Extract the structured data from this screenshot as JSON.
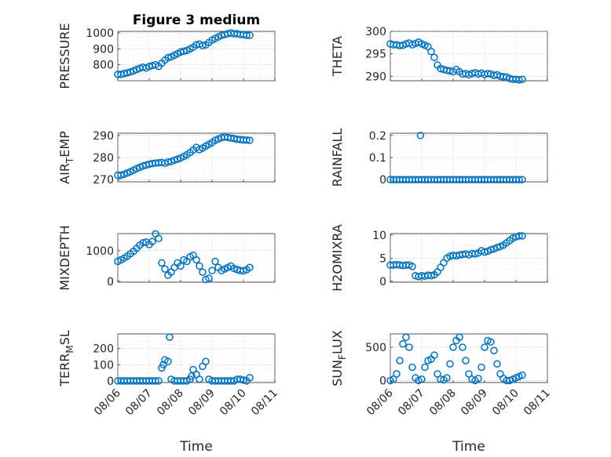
{
  "colors": {
    "series": "#0072BD"
  },
  "chart_data": [
    {
      "type": "scatter",
      "title": "Figure 3 medium",
      "ylabel": "PRESSURE",
      "ylim": [
        700,
        1010
      ],
      "yticks": [
        800,
        900,
        1000
      ],
      "x": [
        0.0,
        0.1,
        0.2,
        0.3,
        0.4,
        0.5,
        0.6,
        0.7,
        0.8,
        0.9,
        1.0,
        1.1,
        1.2,
        1.3,
        1.4,
        1.5,
        1.6,
        1.7,
        1.8,
        1.9,
        2.0,
        2.1,
        2.2,
        2.3,
        2.4,
        2.5,
        2.6,
        2.7,
        2.8,
        2.9,
        3.0,
        3.1,
        3.2,
        3.3,
        3.4,
        3.5,
        3.6,
        3.7,
        3.8,
        3.9,
        4.0,
        4.1,
        4.2
      ],
      "y": [
        740,
        740,
        745,
        750,
        755,
        762,
        770,
        778,
        785,
        780,
        790,
        795,
        800,
        790,
        810,
        830,
        845,
        850,
        860,
        870,
        880,
        885,
        890,
        900,
        910,
        925,
        930,
        920,
        925,
        940,
        955,
        965,
        975,
        985,
        990,
        995,
        1000,
        995,
        995,
        990,
        990,
        985,
        985
      ]
    },
    {
      "type": "scatter",
      "title": "",
      "ylabel": "THETA",
      "ylim": [
        289,
        300
      ],
      "yticks": [
        290,
        295,
        300
      ],
      "x": [
        0.0,
        0.1,
        0.2,
        0.3,
        0.4,
        0.5,
        0.6,
        0.7,
        0.8,
        0.9,
        1.0,
        1.1,
        1.2,
        1.3,
        1.4,
        1.5,
        1.6,
        1.7,
        1.8,
        1.9,
        2.0,
        2.1,
        2.2,
        2.3,
        2.4,
        2.5,
        2.6,
        2.7,
        2.8,
        2.9,
        3.0,
        3.1,
        3.2,
        3.3,
        3.4,
        3.5,
        3.6,
        3.7,
        3.8,
        3.9,
        4.0,
        4.1,
        4.2
      ],
      "y": [
        297.2,
        297.0,
        297.0,
        296.8,
        296.9,
        297.2,
        297.4,
        297.0,
        297.3,
        297.6,
        297.2,
        296.9,
        296.6,
        295.5,
        294.2,
        292.5,
        291.7,
        291.5,
        291.3,
        291.2,
        291.0,
        291.5,
        291.0,
        290.5,
        290.6,
        290.3,
        290.6,
        290.8,
        290.5,
        290.7,
        290.4,
        290.6,
        290.5,
        290.2,
        290.3,
        290.0,
        289.9,
        289.8,
        289.5,
        289.3,
        289.3,
        289.2,
        289.3
      ]
    },
    {
      "type": "scatter",
      "title": "",
      "ylabel": "AIR_TEMP",
      "ylabel_main": "AIR",
      "ylabel_sub": "T",
      "ylabel_rest": "EMP",
      "ylim": [
        269,
        291
      ],
      "yticks": [
        270,
        280,
        290
      ],
      "x": [
        0.0,
        0.1,
        0.2,
        0.3,
        0.4,
        0.5,
        0.6,
        0.7,
        0.8,
        0.9,
        1.0,
        1.1,
        1.2,
        1.3,
        1.4,
        1.5,
        1.6,
        1.7,
        1.8,
        1.9,
        2.0,
        2.1,
        2.2,
        2.3,
        2.4,
        2.5,
        2.6,
        2.7,
        2.8,
        2.9,
        3.0,
        3.1,
        3.2,
        3.3,
        3.4,
        3.5,
        3.6,
        3.7,
        3.8,
        3.9,
        4.0,
        4.1,
        4.2
      ],
      "y": [
        272,
        272,
        272.4,
        273,
        273.6,
        274.3,
        275,
        275.6,
        276.2,
        276.6,
        277,
        277.3,
        277.5,
        277.6,
        277.8,
        277.4,
        278,
        278.2,
        278.8,
        279.2,
        279.8,
        280.5,
        281.3,
        282.2,
        283.4,
        284.6,
        283.6,
        284.3,
        285.2,
        286,
        286.8,
        287.8,
        288.4,
        289,
        289.3,
        289.1,
        288.8,
        288.6,
        288.3,
        288.1,
        288,
        287.9,
        287.8
      ]
    },
    {
      "type": "scatter",
      "title": "",
      "ylabel": "RAINFALL",
      "ylim": [
        -0.01,
        0.21
      ],
      "yticks": [
        0,
        0.1,
        0.2
      ],
      "ytick_labels": [
        "0",
        "0.1",
        "0.2"
      ],
      "x": [
        0.0,
        0.1,
        0.2,
        0.3,
        0.4,
        0.5,
        0.6,
        0.7,
        0.8,
        0.9,
        1.0,
        1.1,
        1.2,
        1.3,
        1.4,
        1.5,
        1.6,
        1.7,
        1.8,
        1.9,
        2.0,
        2.1,
        2.2,
        2.3,
        2.4,
        2.5,
        2.6,
        2.7,
        2.8,
        2.9,
        3.0,
        3.1,
        3.2,
        3.3,
        3.4,
        3.5,
        3.6,
        3.7,
        3.8,
        3.9,
        4.0,
        4.1,
        4.2,
        0.96
      ],
      "y": [
        0,
        0,
        0,
        0,
        0,
        0,
        0,
        0,
        0,
        0,
        0,
        0,
        0,
        0,
        0,
        0,
        0,
        0,
        0,
        0,
        0,
        0,
        0,
        0,
        0,
        0,
        0,
        0,
        0,
        0,
        0,
        0,
        0,
        0,
        0,
        0,
        0,
        0,
        0,
        0,
        0,
        0,
        0,
        0.2
      ]
    },
    {
      "type": "scatter",
      "title": "",
      "ylabel": "MIXDEPTH",
      "ylim": [
        -30,
        1560
      ],
      "yticks": [
        0,
        1000
      ],
      "x": [
        0.0,
        0.1,
        0.2,
        0.3,
        0.4,
        0.5,
        0.6,
        0.7,
        0.8,
        0.9,
        1.0,
        1.1,
        1.2,
        1.3,
        1.4,
        1.5,
        1.6,
        1.7,
        1.8,
        1.9,
        2.0,
        2.1,
        2.2,
        2.3,
        2.4,
        2.5,
        2.6,
        2.7,
        2.8,
        2.9,
        3.0,
        3.1,
        3.2,
        3.3,
        3.4,
        3.5,
        3.6,
        3.7,
        3.8,
        3.9,
        4.0,
        4.1,
        4.2
      ],
      "y": [
        650,
        700,
        760,
        820,
        900,
        980,
        1080,
        1180,
        1260,
        1280,
        1200,
        1300,
        1550,
        1400,
        600,
        400,
        200,
        300,
        450,
        600,
        500,
        700,
        650,
        800,
        850,
        700,
        500,
        300,
        60,
        100,
        350,
        650,
        450,
        350,
        400,
        450,
        500,
        420,
        380,
        350,
        340,
        380,
        450
      ]
    },
    {
      "type": "scatter",
      "title": "",
      "ylabel": "H2OMIXRA",
      "ylim": [
        -0.2,
        10.3
      ],
      "yticks": [
        0,
        5,
        10
      ],
      "x": [
        0.0,
        0.1,
        0.2,
        0.3,
        0.4,
        0.5,
        0.6,
        0.7,
        0.8,
        0.9,
        1.0,
        1.1,
        1.2,
        1.3,
        1.4,
        1.5,
        1.6,
        1.7,
        1.8,
        1.9,
        2.0,
        2.1,
        2.2,
        2.3,
        2.4,
        2.5,
        2.6,
        2.7,
        2.8,
        2.9,
        3.0,
        3.1,
        3.2,
        3.3,
        3.4,
        3.5,
        3.6,
        3.7,
        3.8,
        3.9,
        4.0,
        4.1,
        4.2
      ],
      "y": [
        3.5,
        3.5,
        3.6,
        3.5,
        3.4,
        3.5,
        3.5,
        3.2,
        1.2,
        1.0,
        1.2,
        1.1,
        1.3,
        1.2,
        1.4,
        2.0,
        3.0,
        4.0,
        5.0,
        5.4,
        5.6,
        5.5,
        5.7,
        5.8,
        5.9,
        5.7,
        6.0,
        5.9,
        6.1,
        6.6,
        6.3,
        6.5,
        6.8,
        7.0,
        7.3,
        7.5,
        7.8,
        8.3,
        8.8,
        9.3,
        9.6,
        9.8,
        9.8
      ]
    },
    {
      "type": "scatter",
      "title": "",
      "ylabel": "TERR_MSL",
      "ylabel_main": "TERR",
      "ylabel_sub": "M",
      "ylabel_rest": "SL",
      "ylim": [
        -10,
        290
      ],
      "yticks": [
        0,
        100,
        200
      ],
      "x": [
        0.0,
        0.1,
        0.2,
        0.3,
        0.4,
        0.5,
        0.6,
        0.7,
        0.8,
        0.9,
        1.0,
        1.1,
        1.2,
        1.3,
        1.4,
        1.5,
        1.6,
        1.7,
        1.8,
        1.9,
        2.0,
        2.1,
        2.2,
        2.3,
        2.4,
        2.5,
        2.6,
        2.7,
        2.8,
        2.9,
        3.0,
        3.1,
        3.2,
        3.3,
        3.4,
        3.5,
        3.6,
        3.7,
        3.8,
        3.9,
        4.0,
        4.1,
        4.2,
        1.65,
        2.35,
        1.45
      ],
      "y": [
        0,
        0,
        0,
        0,
        0,
        0,
        0,
        0,
        0,
        0,
        0,
        0,
        0,
        0,
        80,
        130,
        120,
        10,
        0,
        0,
        0,
        0,
        0,
        10,
        70,
        40,
        10,
        90,
        120,
        10,
        0,
        0,
        0,
        0,
        0,
        0,
        0,
        0,
        10,
        10,
        5,
        0,
        20,
        270,
        30,
        100
      ]
    },
    {
      "type": "scatter",
      "title": "",
      "ylabel": "SUN_FLUX",
      "ylabel_main": "SUN",
      "ylabel_sub": "F",
      "ylabel_rest": "LUX",
      "ylim": [
        -30,
        700
      ],
      "yticks": [
        0,
        500
      ],
      "x": [
        0.0,
        0.1,
        0.2,
        0.3,
        0.4,
        0.5,
        0.6,
        0.7,
        0.8,
        0.9,
        1.0,
        1.1,
        1.2,
        1.3,
        1.4,
        1.5,
        1.6,
        1.7,
        1.8,
        1.9,
        2.0,
        2.1,
        2.2,
        2.3,
        2.4,
        2.5,
        2.6,
        2.7,
        2.8,
        2.9,
        3.0,
        3.1,
        3.2,
        3.3,
        3.4,
        3.5,
        3.6,
        3.7,
        3.8,
        3.9,
        4.0,
        4.1,
        4.2
      ],
      "y": [
        0,
        20,
        100,
        300,
        550,
        650,
        500,
        200,
        40,
        0,
        20,
        200,
        300,
        320,
        380,
        100,
        20,
        10,
        40,
        250,
        500,
        600,
        650,
        500,
        300,
        100,
        20,
        0,
        30,
        200,
        500,
        600,
        580,
        450,
        250,
        100,
        30,
        0,
        0,
        20,
        40,
        60,
        80
      ]
    }
  ],
  "xaxis": {
    "label": "Time",
    "xlim": [
      0,
      5
    ],
    "ticks": [
      0,
      1,
      2,
      3,
      4,
      5
    ],
    "tick_labels": [
      "08/06",
      "08/07",
      "08/08",
      "08/09",
      "08/10",
      "08/11"
    ]
  }
}
